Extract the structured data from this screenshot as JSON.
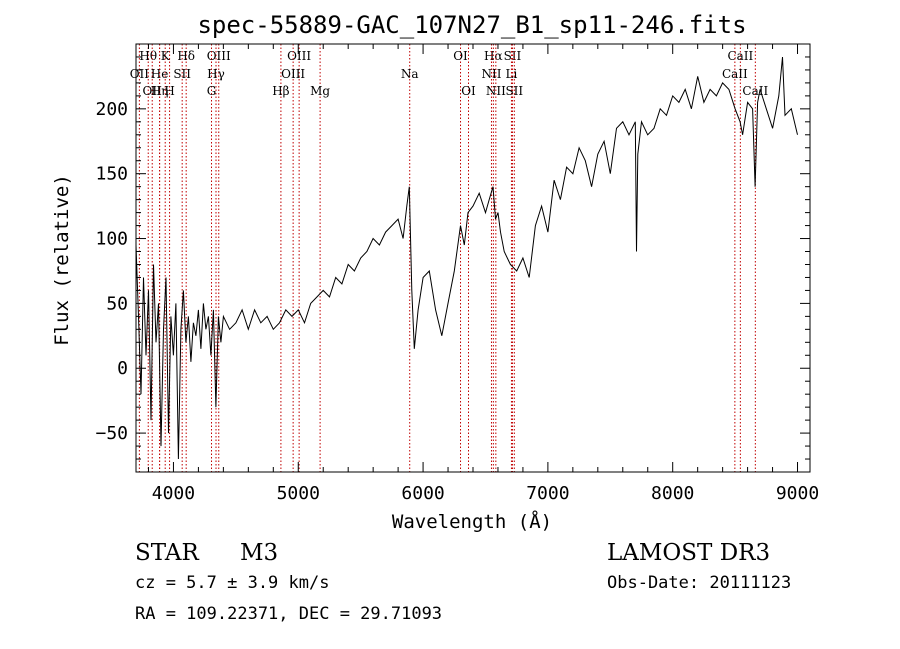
{
  "chart_data": {
    "type": "line",
    "title": "spec-55889-GAC_107N27_B1_sp11-246.fits",
    "xlabel": "Wavelength (Å)",
    "ylabel": "Flux (relative)",
    "xlim": [
      3700,
      9100
    ],
    "ylim": [
      -80,
      250
    ],
    "xticks": [
      4000,
      5000,
      6000,
      7000,
      8000,
      9000
    ],
    "yticks": [
      -50,
      0,
      50,
      100,
      150,
      200
    ],
    "grid": false,
    "series": [
      {
        "name": "flux",
        "x": [
          3700,
          3720,
          3740,
          3760,
          3780,
          3800,
          3820,
          3840,
          3860,
          3880,
          3900,
          3920,
          3940,
          3960,
          3980,
          4000,
          4020,
          4040,
          4060,
          4080,
          4100,
          4120,
          4140,
          4160,
          4180,
          4200,
          4220,
          4240,
          4260,
          4280,
          4300,
          4320,
          4340,
          4360,
          4380,
          4400,
          4450,
          4500,
          4550,
          4600,
          4650,
          4700,
          4750,
          4800,
          4850,
          4900,
          4950,
          5000,
          5050,
          5100,
          5150,
          5200,
          5250,
          5300,
          5350,
          5400,
          5450,
          5500,
          5550,
          5600,
          5650,
          5700,
          5750,
          5800,
          5840,
          5870,
          5890,
          5910,
          5930,
          5960,
          6000,
          6050,
          6100,
          6150,
          6200,
          6250,
          6300,
          6330,
          6360,
          6400,
          6450,
          6500,
          6530,
          6560,
          6580,
          6600,
          6620,
          6650,
          6700,
          6750,
          6800,
          6850,
          6900,
          6950,
          7000,
          7050,
          7100,
          7150,
          7200,
          7250,
          7300,
          7350,
          7400,
          7450,
          7500,
          7550,
          7600,
          7650,
          7700,
          7710,
          7720,
          7750,
          7800,
          7850,
          7900,
          7950,
          8000,
          8050,
          8100,
          8150,
          8200,
          8250,
          8300,
          8350,
          8400,
          8450,
          8500,
          8540,
          8560,
          8600,
          8640,
          8660,
          8680,
          8700,
          8750,
          8800,
          8850,
          8880,
          8900,
          8950,
          9000
        ],
        "values": [
          95,
          40,
          -20,
          70,
          10,
          60,
          -40,
          80,
          20,
          50,
          -60,
          30,
          70,
          -50,
          40,
          10,
          50,
          -70,
          30,
          60,
          20,
          40,
          5,
          35,
          25,
          45,
          15,
          50,
          30,
          40,
          10,
          45,
          -30,
          40,
          20,
          40,
          30,
          35,
          45,
          30,
          45,
          35,
          40,
          30,
          35,
          45,
          40,
          45,
          35,
          50,
          55,
          60,
          55,
          70,
          65,
          80,
          75,
          85,
          90,
          100,
          95,
          105,
          110,
          115,
          100,
          125,
          140,
          60,
          15,
          45,
          70,
          75,
          45,
          25,
          50,
          75,
          110,
          95,
          120,
          125,
          135,
          120,
          130,
          140,
          115,
          120,
          105,
          90,
          80,
          75,
          85,
          70,
          110,
          125,
          105,
          145,
          130,
          155,
          150,
          170,
          160,
          140,
          165,
          175,
          150,
          185,
          190,
          180,
          190,
          90,
          165,
          190,
          180,
          185,
          200,
          195,
          210,
          205,
          215,
          200,
          225,
          205,
          215,
          210,
          220,
          215,
          200,
          190,
          180,
          205,
          200,
          140,
          205,
          215,
          200,
          185,
          210,
          240,
          195,
          200,
          180
        ]
      }
    ],
    "spectral_lines": [
      {
        "name": "OII",
        "row": 2,
        "x": 3727
      },
      {
        "name": "Hθ",
        "row": 1,
        "x": 3798
      },
      {
        "name": "OII",
        "row": 3,
        "x": 3830
      },
      {
        "name": "He",
        "row": 2,
        "x": 3889
      },
      {
        "name": "K",
        "row": 1,
        "x": 3934
      },
      {
        "name": "Hη",
        "row": 3,
        "x": 3889
      },
      {
        "name": "H",
        "row": 3,
        "x": 3969
      },
      {
        "name": "SII",
        "row": 2,
        "x": 4070
      },
      {
        "name": "Hδ",
        "row": 1,
        "x": 4102
      },
      {
        "name": "OIII",
        "row": 1,
        "x": 4363
      },
      {
        "name": "Hγ",
        "row": 2,
        "x": 4341
      },
      {
        "name": "G",
        "row": 3,
        "x": 4305
      },
      {
        "name": "Hβ",
        "row": 3,
        "x": 4861
      },
      {
        "name": "OIII",
        "row": 1,
        "x": 5007
      },
      {
        "name": "OIII",
        "row": 2,
        "x": 4959
      },
      {
        "name": "Mg",
        "row": 3,
        "x": 5175
      },
      {
        "name": "Na",
        "row": 2,
        "x": 5893
      },
      {
        "name": "OI",
        "row": 1,
        "x": 6300
      },
      {
        "name": "OI",
        "row": 3,
        "x": 6364
      },
      {
        "name": "Hα",
        "row": 1,
        "x": 6563
      },
      {
        "name": "SII",
        "row": 1,
        "x": 6716
      },
      {
        "name": "NII",
        "row": 2,
        "x": 6548
      },
      {
        "name": "Li",
        "row": 2,
        "x": 6708
      },
      {
        "name": "NII",
        "row": 3,
        "x": 6583
      },
      {
        "name": "SII",
        "row": 3,
        "x": 6731
      },
      {
        "name": "CaII",
        "row": 1,
        "x": 8542
      },
      {
        "name": "CaII",
        "row": 2,
        "x": 8498
      },
      {
        "name": "CaII",
        "row": 3,
        "x": 8662
      }
    ]
  },
  "info": {
    "object_type": "STAR",
    "subclass": "M3",
    "cz": "cz = 5.7 ± 3.9 km/s",
    "radec": "RA = 109.22371, DEC =  29.71093",
    "survey": "LAMOST DR3",
    "obs_date": "Obs-Date: 20111123"
  }
}
